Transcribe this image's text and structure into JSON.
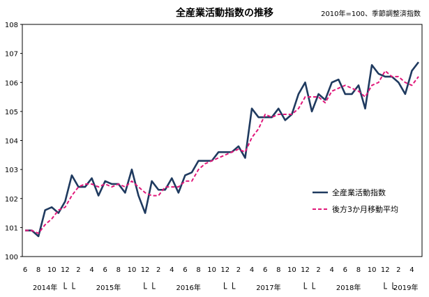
{
  "chart_data": {
    "type": "line",
    "title": "全産業活動指数の推移",
    "note": "2010年=100、季節調整済指数",
    "xlabel": "",
    "ylabel": "",
    "ylim": [
      100,
      108
    ],
    "yticks": [
      "100",
      "101",
      "102",
      "103",
      "104",
      "105",
      "106",
      "107",
      "108"
    ],
    "grid": false,
    "legend_position": "right",
    "month_ticks": [
      "6",
      "8",
      "10",
      "12",
      "2",
      "4",
      "6",
      "8",
      "10",
      "12",
      "2",
      "4",
      "6",
      "8",
      "10",
      "12",
      "2",
      "4",
      "6",
      "8",
      "10",
      "12",
      "2",
      "4",
      "6",
      "8",
      "10",
      "12",
      "2",
      "4"
    ],
    "year_labels": [
      "2014年",
      "2015年",
      "2016年",
      "2017年",
      "2018年",
      "2019年"
    ],
    "x": [
      "2014-06",
      "2014-07",
      "2014-08",
      "2014-09",
      "2014-10",
      "2014-11",
      "2014-12",
      "2015-01",
      "2015-02",
      "2015-03",
      "2015-04",
      "2015-05",
      "2015-06",
      "2015-07",
      "2015-08",
      "2015-09",
      "2015-10",
      "2015-11",
      "2015-12",
      "2016-01",
      "2016-02",
      "2016-03",
      "2016-04",
      "2016-05",
      "2016-06",
      "2016-07",
      "2016-08",
      "2016-09",
      "2016-10",
      "2016-11",
      "2016-12",
      "2017-01",
      "2017-02",
      "2017-03",
      "2017-04",
      "2017-05",
      "2017-06",
      "2017-07",
      "2017-08",
      "2017-09",
      "2017-10",
      "2017-11",
      "2017-12",
      "2018-01",
      "2018-02",
      "2018-03",
      "2018-04",
      "2018-05",
      "2018-06",
      "2018-07",
      "2018-08",
      "2018-09",
      "2018-10",
      "2018-11",
      "2018-12",
      "2019-01",
      "2019-02",
      "2019-03",
      "2019-04",
      "2019-05"
    ],
    "series": [
      {
        "name": "全産業活動指数",
        "color": "#1f3a5f",
        "style": "solid",
        "values": [
          100.9,
          100.9,
          100.7,
          101.6,
          101.7,
          101.5,
          101.9,
          102.8,
          102.4,
          102.4,
          102.7,
          102.1,
          102.6,
          102.5,
          102.5,
          102.2,
          103.0,
          102.1,
          101.5,
          102.6,
          102.3,
          102.3,
          102.7,
          102.2,
          102.8,
          102.9,
          103.3,
          103.3,
          103.3,
          103.6,
          103.6,
          103.6,
          103.8,
          103.4,
          105.1,
          104.8,
          104.8,
          104.8,
          105.1,
          104.7,
          104.9,
          105.6,
          106.0,
          105.0,
          105.6,
          105.4,
          106.0,
          106.1,
          105.6,
          105.6,
          105.9,
          105.1,
          106.6,
          106.3,
          106.2,
          106.2,
          106.0,
          105.6,
          106.4,
          106.7
        ]
      },
      {
        "name": "後方3か月移動平均",
        "color": "#e0187a",
        "style": "dashed",
        "values": [
          100.9,
          100.9,
          100.8,
          101.1,
          101.3,
          101.6,
          101.7,
          102.1,
          102.4,
          102.5,
          102.5,
          102.4,
          102.5,
          102.4,
          102.5,
          102.4,
          102.6,
          102.4,
          102.2,
          102.1,
          102.1,
          102.4,
          102.4,
          102.4,
          102.6,
          102.6,
          103.0,
          103.2,
          103.3,
          103.4,
          103.5,
          103.6,
          103.7,
          103.6,
          104.1,
          104.4,
          104.9,
          104.8,
          104.9,
          104.9,
          104.9,
          105.1,
          105.5,
          105.5,
          105.5,
          105.3,
          105.7,
          105.8,
          105.9,
          105.8,
          105.7,
          105.5,
          105.9,
          106.0,
          106.4,
          106.2,
          106.2,
          106.0,
          105.9,
          106.2
        ]
      }
    ]
  }
}
